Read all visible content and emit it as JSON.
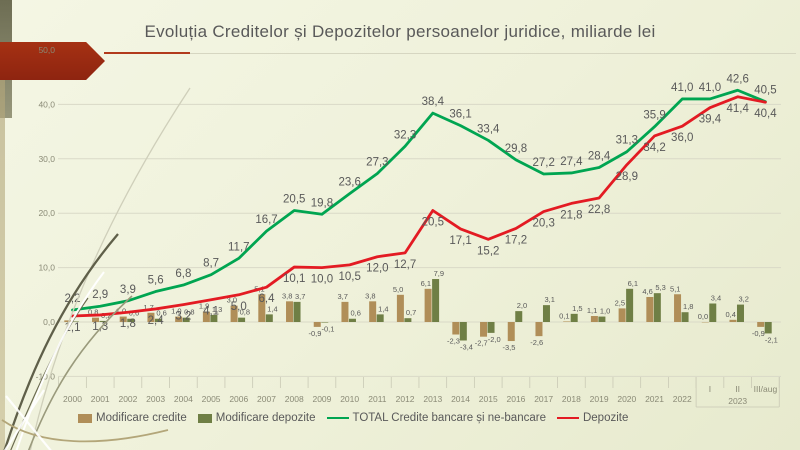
{
  "slide": {
    "title": "Evoluția Creditelor și Depozitelor persoanelor juridice, miliarde lei"
  },
  "legend": {
    "items": [
      {
        "label": "Modificare credite",
        "swatch": "bar",
        "color": "#b08e58"
      },
      {
        "label": "Modificare depozite",
        "swatch": "bar",
        "color": "#6f7f45"
      },
      {
        "label": "TOTAL Credite bancare și ne-bancare",
        "swatch": "line",
        "color": "#00a551"
      },
      {
        "label": "Depozite",
        "swatch": "line",
        "color": "#e31b23"
      }
    ]
  },
  "chart_data": {
    "type": "combo bar+line",
    "title": "Evoluția Creditelor și Depozitelor persoanelor juridice, miliarde lei",
    "categories": [
      "2000",
      "2001",
      "2002",
      "2003",
      "2004",
      "2005",
      "2006",
      "2007",
      "2008",
      "2009",
      "2010",
      "2011",
      "2012",
      "2013",
      "2014",
      "2015",
      "2016",
      "2017",
      "2018",
      "2019",
      "2020",
      "2021",
      "2022",
      "I",
      "II",
      "III/aug"
    ],
    "category_group": {
      "label": "2023",
      "from": "I",
      "to": "III/aug"
    },
    "y_axis": {
      "min": -10,
      "max": 50,
      "ticks": [
        -10,
        0,
        10,
        20,
        30,
        40,
        50
      ],
      "tick_labels": [
        "-10,0",
        "0,0",
        "10,0",
        "20,0",
        "30,0",
        "40,0",
        "50,0"
      ],
      "grid": true
    },
    "legend_position": "bottom",
    "series": [
      {
        "name": "Modificare credite",
        "type": "bar",
        "color": "#b08e58",
        "values": [
          0.3,
          0.8,
          1.0,
          1.7,
          1.0,
          1.9,
          3.0,
          5.1,
          3.8,
          -0.9,
          3.7,
          3.8,
          5.0,
          6.1,
          -2.3,
          -2.7,
          -3.5,
          -2.6,
          0.1,
          1.1,
          2.5,
          4.6,
          5.1,
          0.0,
          0.4,
          -0.9
        ],
        "labels": [
          "",
          "0,8",
          "1,0",
          "1,7",
          "1,0",
          "1,9",
          "3,0",
          "5,1",
          "3,8",
          "-0,9",
          "3,7",
          "3,8",
          "5,0",
          "6,1",
          "-2,3",
          "-2,7",
          "-3,5",
          "-2,6",
          "0,1",
          "1,1",
          "2,5",
          "4,6",
          "5,1",
          "0,0",
          "0,4",
          "-0,9"
        ]
      },
      {
        "name": "Modificare depozite",
        "type": "bar",
        "color": "#6f7f45",
        "values": [
          0.1,
          0.2,
          0.6,
          0.6,
          0.8,
          1.3,
          0.8,
          1.4,
          3.7,
          -0.1,
          0.6,
          1.4,
          0.7,
          7.9,
          -3.4,
          -2.0,
          2.0,
          3.1,
          1.5,
          1.0,
          6.1,
          5.3,
          1.8,
          3.4,
          3.2,
          -2.1
        ],
        "labels": [
          "",
          "0,2",
          "0,6",
          "0,6",
          "0,8",
          "1,3",
          "0,8",
          "1,4",
          "3,7",
          "-0,1",
          "0,6",
          "1,4",
          "0,7",
          "7,9",
          "-3,4",
          "-2,0",
          "2,0",
          "3,1",
          "1,5",
          "1,0",
          "6,1",
          "5,3",
          "1,8",
          "3,4",
          "3,2",
          "-2,1"
        ]
      },
      {
        "name": "TOTAL Credite bancare și ne-bancare",
        "type": "line",
        "color": "#00a551",
        "values": [
          2.2,
          2.9,
          3.9,
          5.6,
          6.8,
          8.7,
          11.7,
          16.7,
          20.5,
          19.8,
          23.6,
          27.3,
          32.3,
          38.4,
          36.1,
          33.4,
          29.8,
          27.2,
          27.4,
          28.4,
          31.3,
          35.9,
          41.0,
          41.0,
          42.6,
          40.5
        ],
        "labels": [
          "2,2",
          "2,9",
          "3,9",
          "5,6",
          "6,8",
          "8,7",
          "11,7",
          "16,7",
          "20,5",
          "19,8",
          "23,6",
          "27,3",
          "32,3",
          "38,4",
          "36,1",
          "33,4",
          "29,8",
          "27,2",
          "27,4",
          "28,4",
          "31,3",
          "35,9",
          "41,0",
          "41,0",
          "42,6",
          "40,5"
        ]
      },
      {
        "name": "Depozite",
        "type": "line",
        "color": "#e31b23",
        "values": [
          1.1,
          1.3,
          1.8,
          2.4,
          3.2,
          4.1,
          5.0,
          6.4,
          10.1,
          10.0,
          10.5,
          12.0,
          12.7,
          20.5,
          17.1,
          15.2,
          17.2,
          20.3,
          21.8,
          22.8,
          28.9,
          34.2,
          36.0,
          39.4,
          41.4,
          40.4
        ],
        "labels": [
          "1,1",
          "1,3",
          "1,8",
          "2,4",
          "3,2",
          "4,1",
          "5,0",
          "6,4",
          "10,1",
          "10,0",
          "10,5",
          "12,0",
          "12,7",
          "20,5",
          "17,1",
          "15,2",
          "17,2",
          "20,3",
          "21,8",
          "22,8",
          "28,9",
          "34,2",
          "36,0",
          "39,4",
          "41,4",
          "40,4"
        ]
      }
    ]
  }
}
